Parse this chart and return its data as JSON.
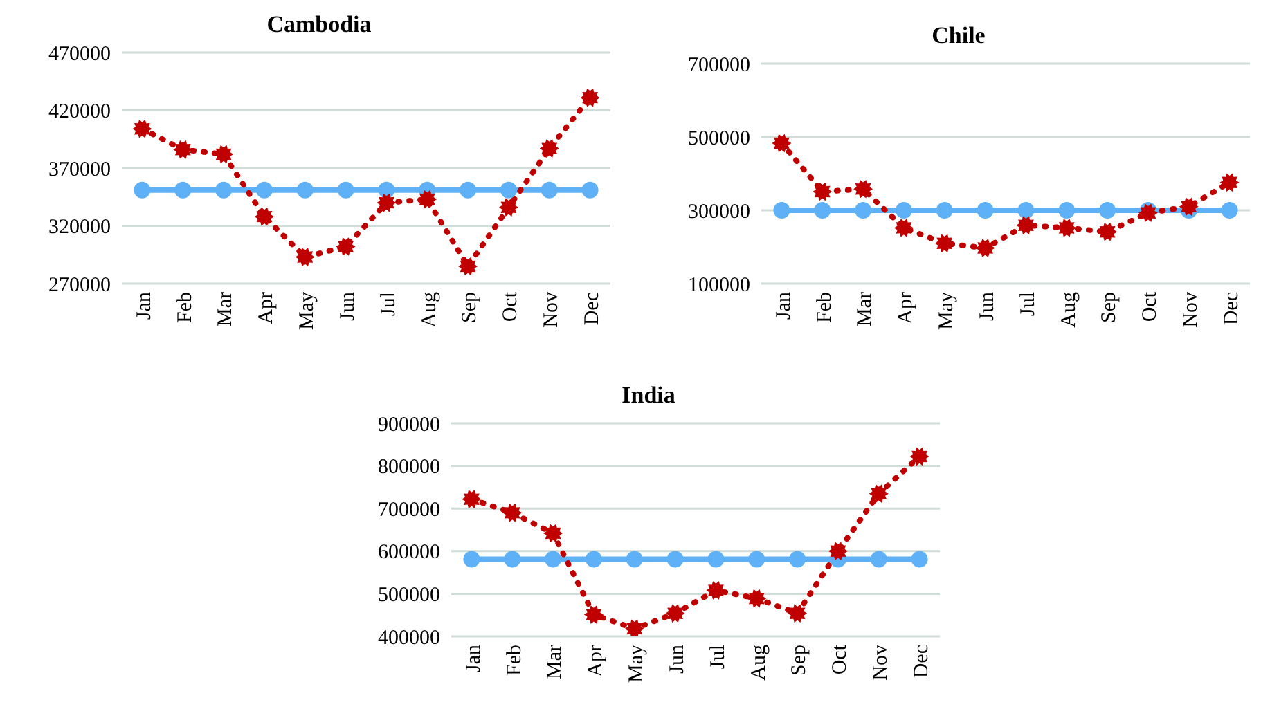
{
  "chart_data": [
    {
      "type": "line",
      "title": "Cambodia",
      "categories": [
        "Jan",
        "Feb",
        "Mar",
        "Apr",
        "May",
        "Jun",
        "Jul",
        "Aug",
        "Sep",
        "Oct",
        "Nov",
        "Dec"
      ],
      "ylim": [
        270000,
        470000
      ],
      "yticks": [
        270000,
        320000,
        370000,
        420000,
        470000
      ],
      "grid": "y",
      "series": [
        {
          "color": "#c00000",
          "marker": "star",
          "line_style": "dotted",
          "values": [
            404000,
            386000,
            382000,
            328000,
            293000,
            302000,
            340000,
            343000,
            285000,
            336000,
            387000,
            431000
          ]
        },
        {
          "color": "#5eb1f7",
          "marker": "circle",
          "line_style": "solid",
          "values": [
            351000,
            351000,
            351000,
            351000,
            351000,
            351000,
            351000,
            351000,
            351000,
            351000,
            351000,
            351000
          ]
        }
      ]
    },
    {
      "type": "line",
      "title": "Chile",
      "categories": [
        "Jan",
        "Feb",
        "Mar",
        "Apr",
        "May",
        "Jun",
        "Jul",
        "Aug",
        "Sep",
        "Oct",
        "Nov",
        "Dec"
      ],
      "ylim": [
        100000,
        700000
      ],
      "yticks": [
        100000,
        300000,
        500000,
        700000
      ],
      "grid": "y",
      "series": [
        {
          "color": "#c00000",
          "marker": "star",
          "line_style": "dotted",
          "values": [
            483000,
            351000,
            358000,
            252000,
            210000,
            197000,
            259000,
            252000,
            241000,
            293000,
            310000,
            376000
          ]
        },
        {
          "color": "#5eb1f7",
          "marker": "circle",
          "line_style": "solid",
          "values": [
            300000,
            300000,
            300000,
            300000,
            300000,
            300000,
            300000,
            300000,
            300000,
            300000,
            300000,
            300000
          ]
        }
      ]
    },
    {
      "type": "line",
      "title": "India",
      "categories": [
        "Jan",
        "Feb",
        "Mar",
        "Apr",
        "May",
        "Jun",
        "Jul",
        "Aug",
        "Sep",
        "Oct",
        "Nov",
        "Dec"
      ],
      "ylim": [
        400000,
        900000
      ],
      "yticks": [
        400000,
        500000,
        600000,
        700000,
        800000,
        900000
      ],
      "grid": "y",
      "series": [
        {
          "color": "#c00000",
          "marker": "star",
          "line_style": "dotted",
          "values": [
            722000,
            690000,
            642000,
            451000,
            418000,
            454000,
            508000,
            489000,
            454000,
            600000,
            735000,
            822000
          ]
        },
        {
          "color": "#5eb1f7",
          "marker": "circle",
          "line_style": "solid",
          "values": [
            581000,
            581000,
            581000,
            581000,
            581000,
            581000,
            581000,
            581000,
            581000,
            581000,
            581000,
            581000
          ]
        }
      ]
    }
  ]
}
